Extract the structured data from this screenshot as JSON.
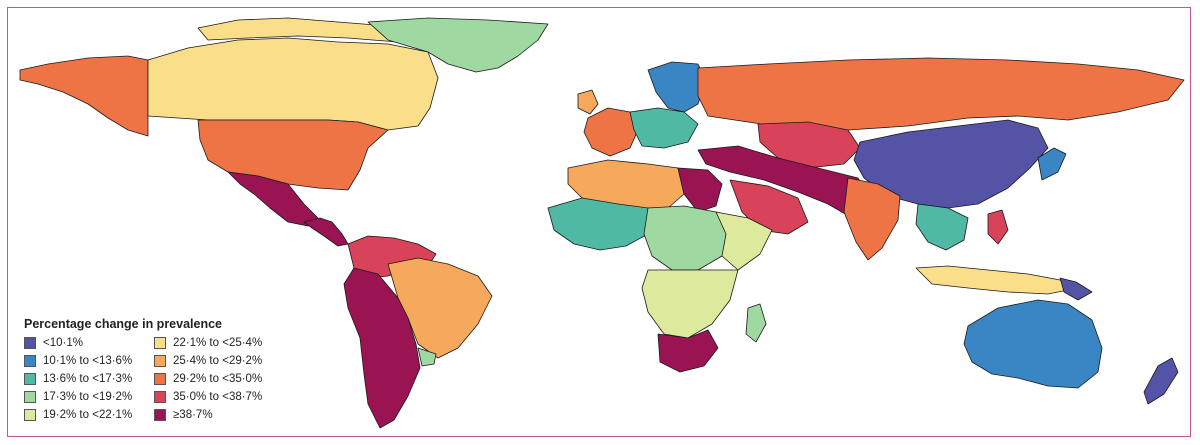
{
  "legend": {
    "title": "Percentage change in prevalence",
    "items": [
      {
        "label": "<10·1%",
        "color": "#5553a6"
      },
      {
        "label": "10·1% to <13·6%",
        "color": "#3a86c4"
      },
      {
        "label": "13·6% to <17·3%",
        "color": "#4fb9a3"
      },
      {
        "label": "17·3% to <19·2%",
        "color": "#9fd8a0"
      },
      {
        "label": "19·2% to <22·1%",
        "color": "#dde99c"
      },
      {
        "label": "22·1% to <25·4%",
        "color": "#fbde8a"
      },
      {
        "label": "25·4% to <29·2%",
        "color": "#f6a85c"
      },
      {
        "label": "29·2% to <35·0%",
        "color": "#ee7446"
      },
      {
        "label": "35·0% to <38·7%",
        "color": "#d8435a"
      },
      {
        "label": "≥38·7%",
        "color": "#9a1454"
      }
    ]
  },
  "no_data_color": "#bfbfbf"
}
